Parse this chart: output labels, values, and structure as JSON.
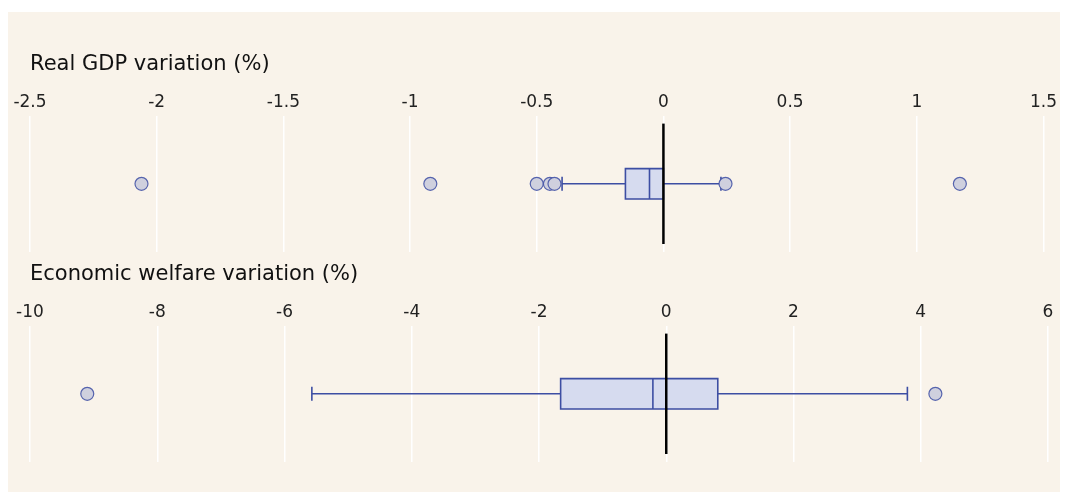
{
  "chart_data": [
    {
      "type": "box",
      "title": "Real GDP variation (%)",
      "orientation": "horizontal",
      "categories": [
        null
      ],
      "color": "#d6dbef",
      "boxes": [
        {
          "low": -0.4,
          "q1": -0.15,
          "median": -0.055,
          "q3": 0.0,
          "high": 0.227,
          "outliers": [
            -2.06,
            -0.92,
            -0.5,
            -0.448,
            -0.43,
            0.245,
            1.17
          ]
        }
      ],
      "xlim": [
        -2.5,
        1.5
      ],
      "xticks": [
        -2.5,
        -2,
        -1.5,
        -1,
        -0.5,
        0,
        0.5,
        1,
        1.5
      ],
      "grid": "x",
      "tick_labels": "x",
      "ref_lines": [
        {
          "axis": "x",
          "value": 0,
          "color": "#000000"
        }
      ]
    },
    {
      "type": "box",
      "title": "Economic welfare variation (%)",
      "orientation": "horizontal",
      "categories": [
        null
      ],
      "color": "#d6dbef",
      "boxes": [
        {
          "low": -5.57,
          "q1": -1.66,
          "median": -0.21,
          "q3": 0.81,
          "high": 3.79,
          "outliers": [
            -9.1,
            4.23
          ]
        }
      ],
      "xlim": [
        -10,
        6
      ],
      "xticks": [
        -10,
        -8,
        -6,
        -4,
        -2,
        0,
        2,
        4,
        6
      ],
      "grid": "x",
      "tick_labels": "x",
      "ref_lines": [
        {
          "axis": "x",
          "value": 0,
          "color": "#000000"
        }
      ]
    }
  ]
}
